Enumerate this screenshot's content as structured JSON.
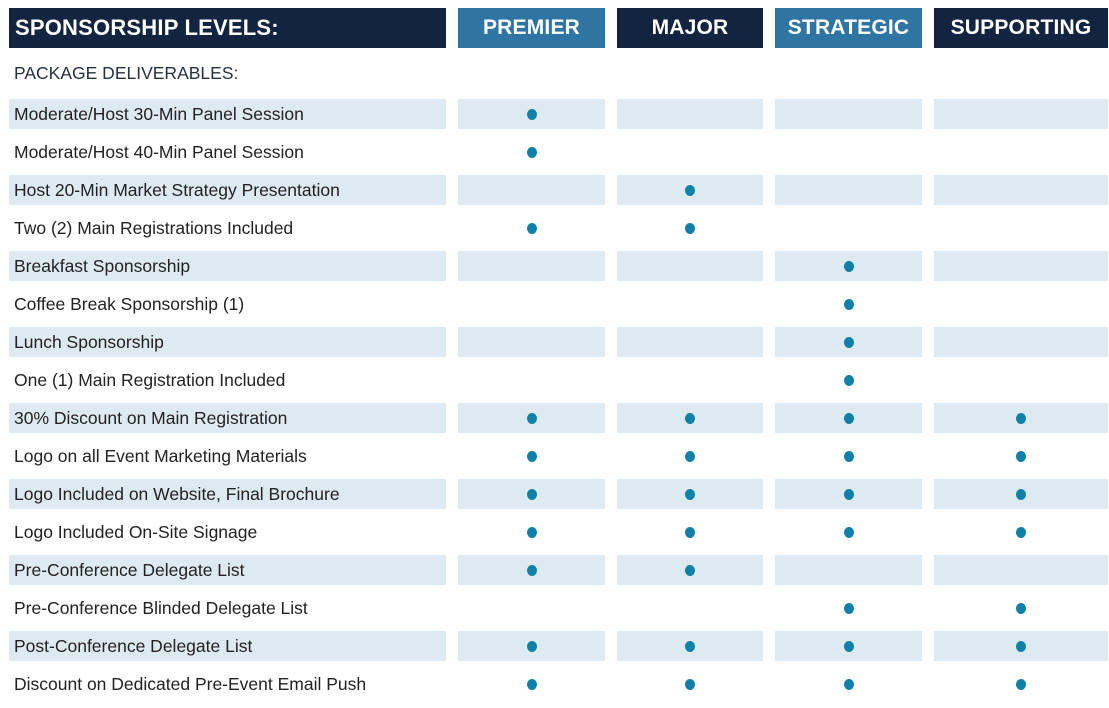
{
  "header": {
    "title": "SPONSORSHIP LEVELS:",
    "columns": [
      {
        "key": "premier",
        "label": "PREMIER",
        "style": "light"
      },
      {
        "key": "major",
        "label": "MAJOR",
        "style": "dark"
      },
      {
        "key": "strategic",
        "label": "STRATEGIC",
        "style": "light"
      },
      {
        "key": "supporting",
        "label": "SUPPORTING",
        "style": "dark"
      }
    ]
  },
  "section_label": "PACKAGE DELIVERABLES:",
  "rows": [
    {
      "label": "Moderate/Host 30-Min Panel Session",
      "dots": [
        true,
        false,
        false,
        false
      ]
    },
    {
      "label": "Moderate/Host 40-Min Panel Session",
      "dots": [
        true,
        false,
        false,
        false
      ]
    },
    {
      "label": "Host 20-Min Market Strategy Presentation",
      "dots": [
        false,
        true,
        false,
        false
      ]
    },
    {
      "label": "Two (2) Main Registrations Included",
      "dots": [
        true,
        true,
        false,
        false
      ]
    },
    {
      "label": "Breakfast Sponsorship",
      "dots": [
        false,
        false,
        true,
        false
      ]
    },
    {
      "label": "Coffee Break Sponsorship (1)",
      "dots": [
        false,
        false,
        true,
        false
      ]
    },
    {
      "label": "Lunch Sponsorship",
      "dots": [
        false,
        false,
        true,
        false
      ]
    },
    {
      "label": "One (1) Main Registration Included",
      "dots": [
        false,
        false,
        true,
        false
      ]
    },
    {
      "label": "30% Discount on Main Registration",
      "dots": [
        true,
        true,
        true,
        true
      ]
    },
    {
      "label": "Logo on all Event Marketing Materials",
      "dots": [
        true,
        true,
        true,
        true
      ]
    },
    {
      "label": "Logo Included on Website, Final Brochure",
      "dots": [
        true,
        true,
        true,
        true
      ]
    },
    {
      "label": "Logo Included On-Site Signage",
      "dots": [
        true,
        true,
        true,
        true
      ]
    },
    {
      "label": "Pre-Conference Delegate List",
      "dots": [
        true,
        true,
        false,
        false
      ]
    },
    {
      "label": "Pre-Conference Blinded Delegate List",
      "dots": [
        false,
        false,
        true,
        true
      ]
    },
    {
      "label": "Post-Conference Delegate List",
      "dots": [
        true,
        true,
        true,
        true
      ]
    },
    {
      "label": "Discount on Dedicated Pre-Event Email Push",
      "dots": [
        true,
        true,
        true,
        true
      ]
    }
  ],
  "colors": {
    "navy": "#132440",
    "blue": "#2E75A4",
    "row_shade": "#DEEAF2",
    "dot": "#0F81A8",
    "label_text": "#242122",
    "header_text": "#FFFFFF"
  }
}
